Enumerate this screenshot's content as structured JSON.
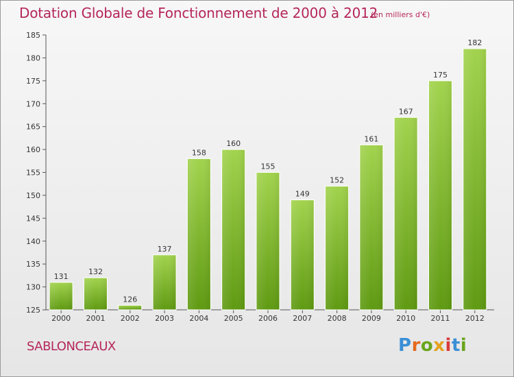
{
  "title": "Dotation Globale de Fonctionnement de 2000 à 2012",
  "subtitle": "(en milliers d'€)",
  "commune": "SABLONCEAUX",
  "brand": "Proxiti",
  "colors": {
    "accent": "#b5265a",
    "bar_top": "#a2d34e",
    "bar_bottom": "#5f9a12"
  },
  "chart_data": {
    "type": "bar",
    "title": "Dotation Globale de Fonctionnement de 2000 à 2012",
    "subtitle": "(en milliers d'€)",
    "xlabel": "",
    "ylabel": "",
    "categories": [
      "2000",
      "2001",
      "2002",
      "2003",
      "2004",
      "2005",
      "2006",
      "2007",
      "2008",
      "2009",
      "2010",
      "2011",
      "2012"
    ],
    "values": [
      131,
      132,
      126,
      137,
      158,
      160,
      155,
      149,
      152,
      161,
      167,
      175,
      182
    ],
    "ylim": [
      125,
      185
    ],
    "yticks": [
      125,
      130,
      135,
      140,
      145,
      150,
      155,
      160,
      165,
      170,
      175,
      180,
      185
    ],
    "grid": false,
    "data_labels": true
  }
}
